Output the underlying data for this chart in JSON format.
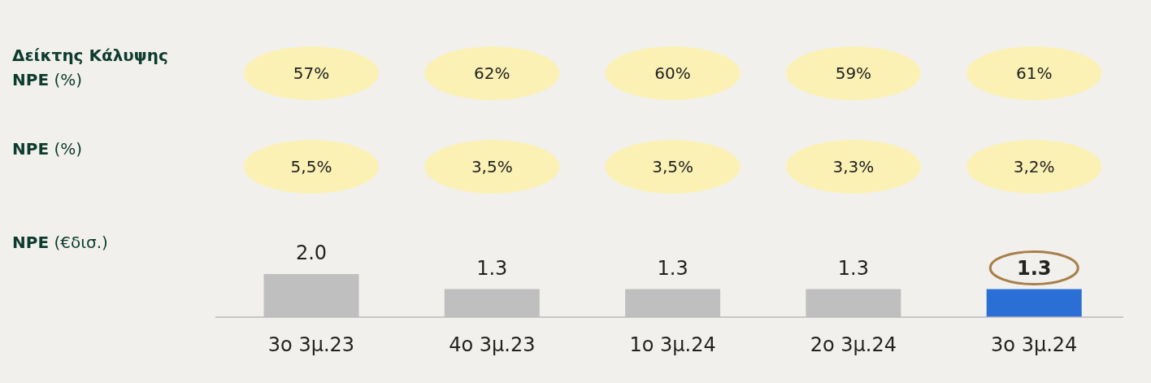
{
  "chart_data": [
    {
      "type": "other",
      "title": "Δείκτης Κάλυψης NPE (%)",
      "categories": [
        null,
        null,
        null,
        null,
        null
      ],
      "values": [
        57,
        62,
        60,
        59,
        61
      ],
      "value_labels": [
        "57%",
        "62%",
        "60%",
        "59%",
        "61%"
      ],
      "color": "#fbf1b5"
    },
    {
      "type": "other",
      "title": "NPE (%)",
      "categories": [
        null,
        null,
        null,
        null,
        null
      ],
      "values": [
        5.5,
        3.5,
        3.5,
        3.3,
        3.2
      ],
      "value_labels": [
        "5,5%",
        "3,5%",
        "3,5%",
        "3,3%",
        "3,2%"
      ],
      "color": "#fbf1b5"
    },
    {
      "type": "bar",
      "ylabel": "NPE (€δισ.)",
      "categories": [
        "3ο 3μ.23",
        "4ο 3μ.23",
        "1ο 3μ.24",
        "2ο 3μ.24",
        "3ο 3μ.24"
      ],
      "values": [
        2.0,
        1.3,
        1.3,
        1.3,
        1.3
      ],
      "value_labels": [
        "2.0",
        "1.3",
        "1.3",
        "1.3",
        "1.3"
      ],
      "colors": [
        "#bfbfbf",
        "#bfbfbf",
        "#bfbfbf",
        "#bfbfbf",
        "#2a6fd6"
      ]
    }
  ]
}
